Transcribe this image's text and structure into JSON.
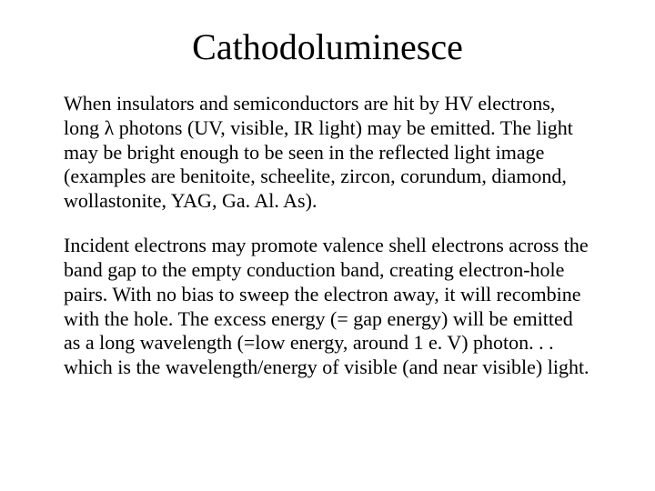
{
  "slide": {
    "title": "Cathodoluminesce",
    "paragraph1": "When insulators and semiconductors are hit by HV electrons, long λ photons (UV, visible, IR light) may be emitted. The light may be bright enough to be seen in the reflected light image (examples are benitoite, scheelite, zircon, corundum, diamond, wollastonite, YAG, Ga. Al. As).",
    "paragraph2": "Incident electrons may promote valence shell electrons across the band gap to the empty conduction band, creating electron-hole pairs. With no bias to sweep the electron away, it will recombine with the hole. The excess energy (= gap energy) will be emitted as a long wavelength (=low energy, around 1 e. V) photon. . . which is the wavelength/energy of visible (and near visible) light.",
    "title_fontsize": 40,
    "body_fontsize": 22,
    "background_color": "#ffffff",
    "text_color": "#000000",
    "font_family": "Times New Roman"
  }
}
